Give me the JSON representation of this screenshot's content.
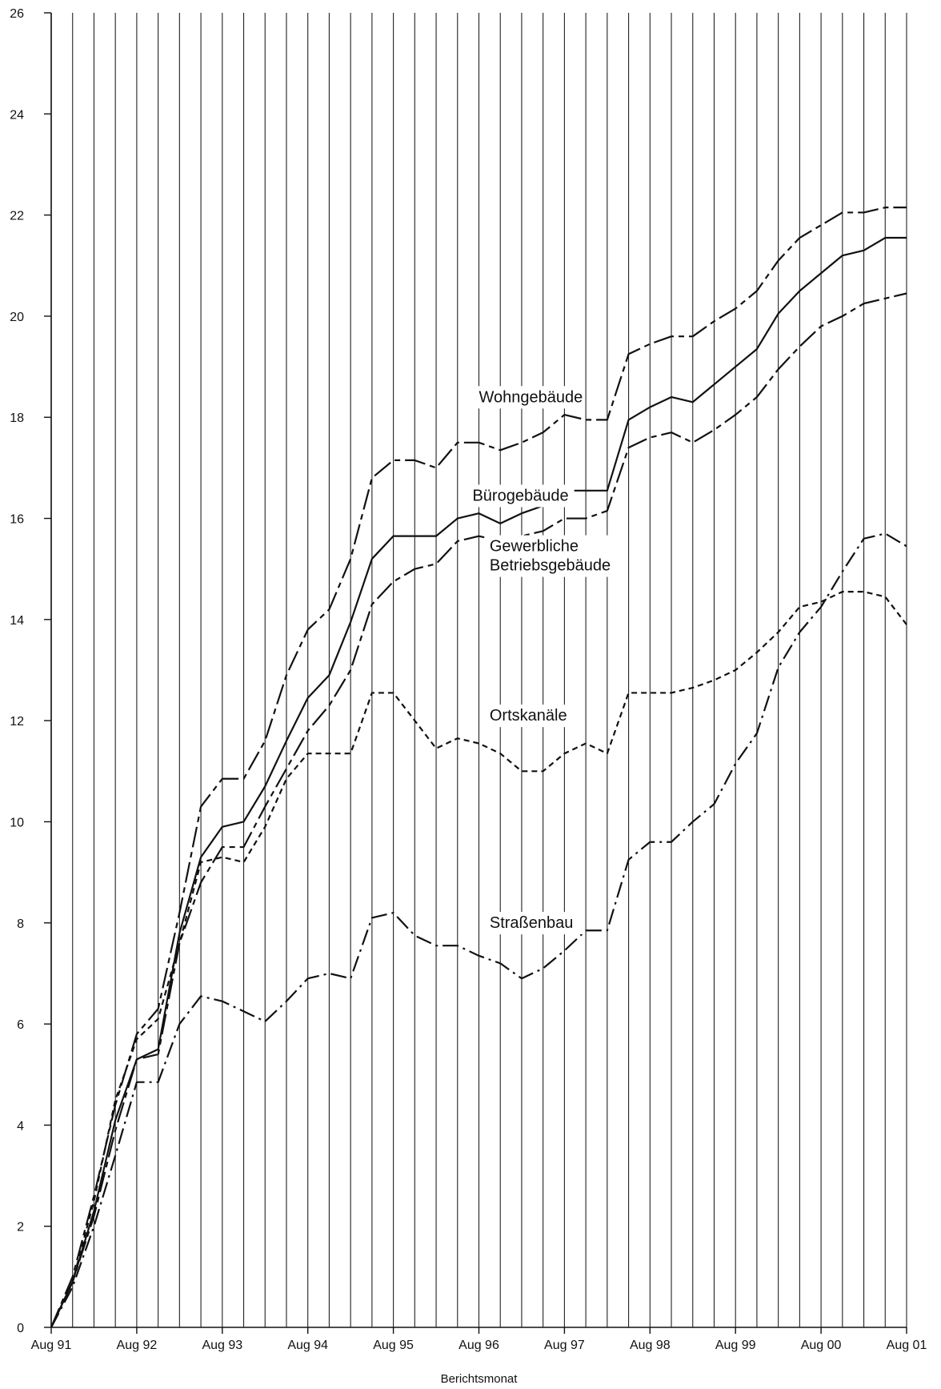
{
  "chart_data": {
    "type": "line",
    "xlabel": "Berichtsmonat",
    "ylabel": "",
    "ylim": [
      0,
      26
    ],
    "yticks": [
      0,
      2,
      4,
      6,
      8,
      10,
      12,
      14,
      16,
      18,
      20,
      22,
      24,
      26
    ],
    "x_tick_labels": [
      "Aug 91",
      "Aug 92",
      "Aug 93",
      "Aug 94",
      "Aug 95",
      "Aug 96",
      "Aug 97",
      "Aug 98",
      "Aug 99",
      "Aug 00",
      "Aug 01"
    ],
    "x_period_months": 3,
    "vertical_grid": true,
    "horizontal_grid": false,
    "series": [
      {
        "name": "Wohngebäude",
        "dash": "long-short",
        "values": [
          0,
          1.0,
          2.6,
          4.4,
          5.8,
          6.3,
          8.2,
          10.3,
          10.85,
          10.85,
          11.6,
          12.9,
          13.8,
          14.2,
          15.2,
          16.8,
          17.15,
          17.15,
          17.0,
          17.5,
          17.5,
          17.35,
          17.5,
          17.7,
          18.05,
          17.95,
          17.95,
          19.25,
          19.45,
          19.6,
          19.6,
          19.9,
          20.15,
          20.5,
          21.1,
          21.55,
          21.8,
          22.05,
          22.05,
          22.15,
          22.15
        ]
      },
      {
        "name": "Bürogebäude",
        "dash": "solid",
        "values": [
          0,
          0.9,
          2.3,
          4.1,
          5.3,
          5.5,
          7.8,
          9.3,
          9.9,
          10.0,
          10.7,
          11.6,
          12.45,
          12.9,
          13.95,
          15.2,
          15.65,
          15.65,
          15.65,
          16.0,
          16.1,
          15.9,
          16.1,
          16.25,
          16.55,
          16.55,
          16.55,
          17.95,
          18.2,
          18.4,
          18.3,
          18.65,
          19.0,
          19.35,
          20.05,
          20.5,
          20.85,
          21.2,
          21.3,
          21.55,
          21.55
        ]
      },
      {
        "name": "Gewerbliche Betriebsgebäude",
        "dash": "long-short",
        "values": [
          0,
          0.9,
          2.2,
          3.9,
          5.3,
          5.4,
          7.6,
          8.8,
          9.5,
          9.5,
          10.3,
          11.05,
          11.8,
          12.3,
          13.0,
          14.3,
          14.75,
          15.0,
          15.1,
          15.55,
          15.65,
          15.55,
          15.65,
          15.75,
          16.0,
          16.0,
          16.15,
          17.4,
          17.6,
          17.7,
          17.5,
          17.75,
          18.05,
          18.4,
          18.95,
          19.4,
          19.8,
          20.0,
          20.25,
          20.35,
          20.45
        ]
      },
      {
        "name": "Ortskanäle",
        "dash": "dashed",
        "values": [
          0,
          0.9,
          2.5,
          4.5,
          5.7,
          6.1,
          7.6,
          9.2,
          9.3,
          9.2,
          9.9,
          10.85,
          11.35,
          11.35,
          11.35,
          12.55,
          12.55,
          12.0,
          11.45,
          11.65,
          11.55,
          11.35,
          11.0,
          11.0,
          11.35,
          11.55,
          11.35,
          12.55,
          12.55,
          12.55,
          12.65,
          12.8,
          13.0,
          13.35,
          13.75,
          14.25,
          14.35,
          14.55,
          14.55,
          14.45,
          13.9
        ]
      },
      {
        "name": "Straßenbau",
        "dash": "dash-dot",
        "values": [
          0,
          0.8,
          2.0,
          3.4,
          4.85,
          4.85,
          6.0,
          6.55,
          6.45,
          6.25,
          6.05,
          6.45,
          6.9,
          7.0,
          6.9,
          8.1,
          8.2,
          7.75,
          7.55,
          7.55,
          7.35,
          7.2,
          6.9,
          7.1,
          7.45,
          7.85,
          7.85,
          9.25,
          9.6,
          9.6,
          10.0,
          10.35,
          11.15,
          11.75,
          13.05,
          13.75,
          14.25,
          14.95,
          15.6,
          15.7,
          15.45
        ]
      }
    ]
  }
}
